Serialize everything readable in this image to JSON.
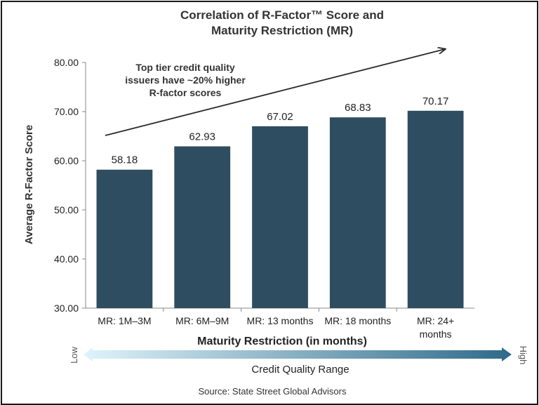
{
  "chart_data": {
    "type": "bar",
    "title_lines": [
      "Correlation of R-Factor™  Score and",
      "Maturity Restriction (MR)"
    ],
    "categories": [
      [
        "MR: 1M–3M"
      ],
      [
        "MR: 6M–9M"
      ],
      [
        "MR: 13 months"
      ],
      [
        "MR: 18 months"
      ],
      [
        "MR: 24+",
        "months"
      ]
    ],
    "values": [
      58.18,
      62.93,
      67.02,
      68.83,
      70.17
    ],
    "value_labels": [
      "58.18",
      "62.93",
      "67.02",
      "68.83",
      "70.17"
    ],
    "xlabel": "Maturity Restriction (in months)",
    "ylabel": "Average R-Factor Score",
    "ylim": [
      30,
      80
    ],
    "yticks": [
      30,
      40,
      50,
      60,
      70,
      80
    ],
    "ytick_labels": [
      "30.00",
      "40.00",
      "50.00",
      "60.00",
      "70.00",
      "80.00"
    ],
    "grid": false,
    "bar_color": "#2f4d60",
    "annotation_lines": [
      "Top tier credit quality",
      "issuers have ~20% higher",
      "R-factor scores"
    ],
    "trend_arrow": true
  },
  "quality_range": {
    "low_label": "Low",
    "high_label": "High",
    "caption": "Credit Quality Range",
    "gradient_start": "#dff4fb",
    "gradient_end": "#2f6a8a"
  },
  "source": "Source: State Street Global Advisors"
}
